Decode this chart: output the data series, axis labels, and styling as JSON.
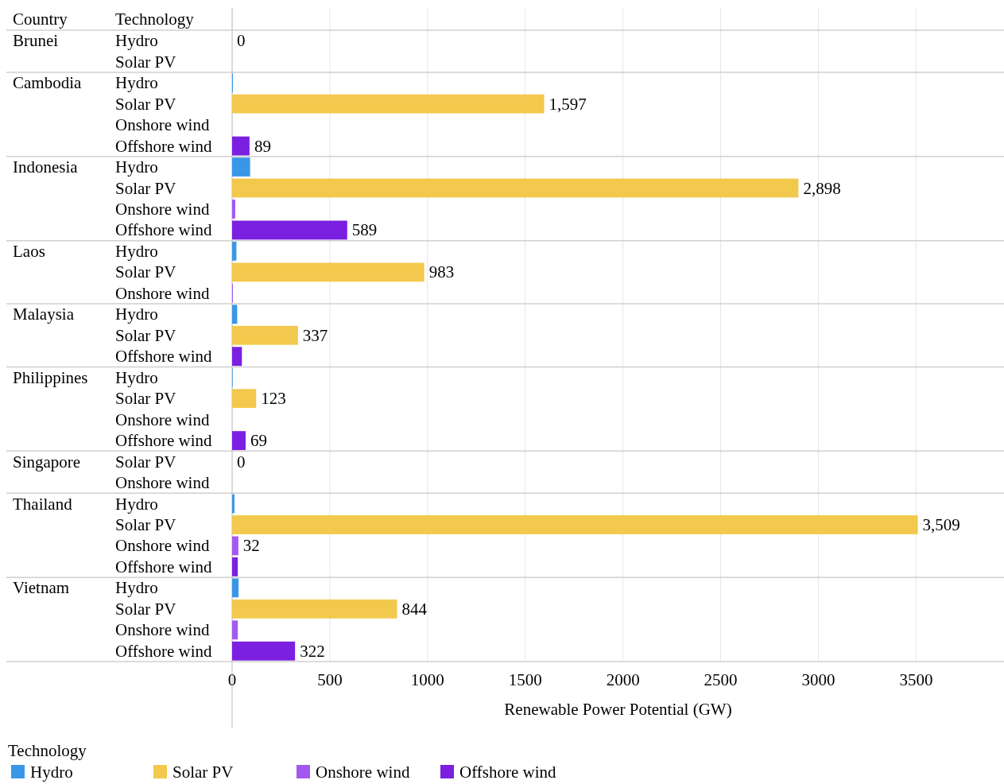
{
  "chart_data": {
    "type": "bar",
    "orientation": "horizontal",
    "ylabel": "Technology",
    "xlabel": "Renewable Power Potential (GW)",
    "legend_title": "Technology",
    "legend": "bottom",
    "grid": "x",
    "annotations": [
      "Country",
      "Brunei",
      "Cambodia",
      "Indonesia",
      "Laos",
      "Malaysia",
      "Philippines",
      "Singapore",
      "Thailand",
      "Vietnam"
    ],
    "categories": [
      "Hydro",
      "Solar PV",
      "Hydro",
      "Solar PV",
      "Onshore wind",
      "Offshore wind",
      "Hydro",
      "Solar PV",
      "Onshore wind",
      "Offshore wind",
      "Hydro",
      "Solar PV",
      "Onshore wind",
      "Hydro",
      "Solar PV",
      "Offshore wind",
      "Hydro",
      "Solar PV",
      "Onshore wind",
      "Offshore wind",
      "Solar PV",
      "Onshore wind",
      "Hydro",
      "Solar PV",
      "Onshore wind",
      "Offshore wind",
      "Hydro",
      "Solar PV",
      "Onshore wind",
      "Offshore wind"
    ],
    "xlim": [
      0,
      3950
    ],
    "xticks": [
      0,
      500,
      1000,
      1500,
      2000,
      2500,
      3000,
      3500
    ],
    "series": [
      {
        "name": "Hydro",
        "color": "#3a97e8",
        "values": [
          0,
          null,
          4,
          null,
          null,
          null,
          92,
          null,
          null,
          null,
          22,
          null,
          null,
          26,
          null,
          null,
          3,
          null,
          null,
          null,
          null,
          null,
          12,
          null,
          null,
          null,
          33,
          null,
          null,
          null
        ],
        "value_labels": [
          "0",
          null,
          null,
          null,
          null,
          null,
          null,
          null,
          null,
          null,
          null,
          null,
          null,
          null,
          null,
          null,
          null,
          null,
          null,
          null,
          null,
          null,
          null,
          null,
          null,
          null,
          null,
          null,
          null,
          null
        ]
      },
      {
        "name": "Solar PV",
        "color": "#f2c94c",
        "values": [
          null,
          0,
          null,
          1597,
          null,
          null,
          null,
          2898,
          null,
          null,
          null,
          983,
          null,
          null,
          337,
          null,
          null,
          123,
          null,
          null,
          0,
          null,
          null,
          3509,
          null,
          null,
          null,
          844,
          null,
          null
        ],
        "value_labels": [
          null,
          null,
          null,
          "1,597",
          null,
          null,
          null,
          "2,898",
          null,
          null,
          null,
          "983",
          null,
          null,
          "337",
          null,
          null,
          "123",
          null,
          null,
          "0",
          null,
          null,
          "3,509",
          null,
          null,
          null,
          "844",
          null,
          null
        ]
      },
      {
        "name": "Onshore wind",
        "color": "#a259f0",
        "values": [
          null,
          null,
          null,
          null,
          0,
          null,
          null,
          null,
          16,
          null,
          null,
          null,
          4,
          null,
          null,
          null,
          null,
          null,
          0,
          null,
          null,
          0,
          null,
          null,
          32,
          null,
          null,
          null,
          29,
          null
        ],
        "value_labels": [
          null,
          null,
          null,
          null,
          null,
          null,
          null,
          null,
          null,
          null,
          null,
          null,
          null,
          null,
          null,
          null,
          null,
          null,
          null,
          null,
          null,
          null,
          null,
          null,
          "32",
          null,
          null,
          null,
          null,
          null
        ]
      },
      {
        "name": "Offshore wind",
        "color": "#7b1fe0",
        "values": [
          null,
          null,
          null,
          null,
          null,
          89,
          null,
          null,
          null,
          589,
          null,
          null,
          null,
          null,
          null,
          50,
          null,
          null,
          null,
          69,
          null,
          null,
          null,
          null,
          null,
          29,
          null,
          null,
          null,
          322
        ],
        "value_labels": [
          null,
          null,
          null,
          null,
          null,
          "89",
          null,
          null,
          null,
          "589",
          null,
          null,
          null,
          null,
          null,
          null,
          null,
          null,
          null,
          "69",
          null,
          null,
          null,
          null,
          null,
          null,
          null,
          null,
          null,
          "322"
        ]
      }
    ]
  }
}
